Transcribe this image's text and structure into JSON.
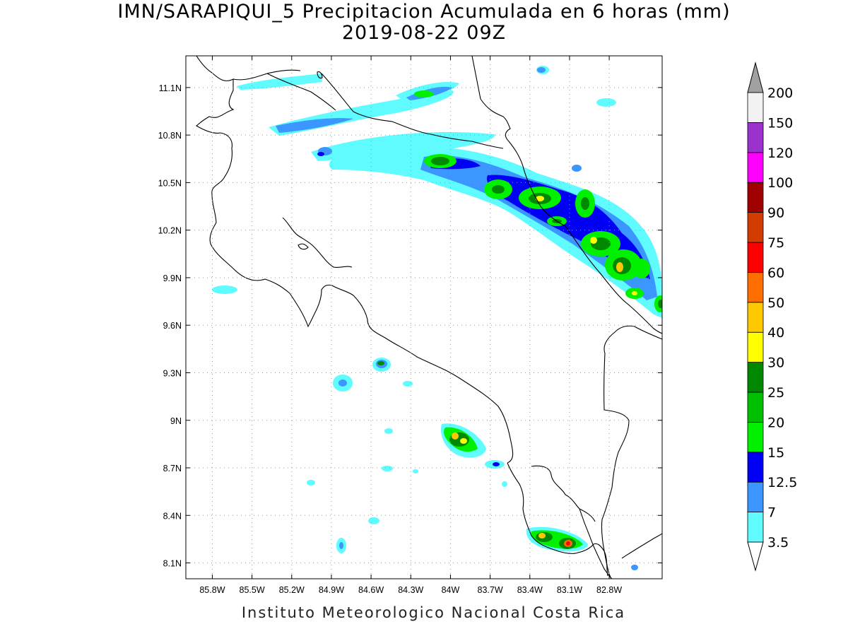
{
  "title": {
    "line1": "IMN/SARAPIQUI_5 Precipitacion Acumulada en 6 horas (mm)",
    "line2": "2019-08-22 09Z"
  },
  "footer": "Instituto Meteorologico Nacional Costa Rica",
  "map": {
    "lon_range": [
      -86.0,
      -82.4
    ],
    "lat_range": [
      8.0,
      11.3
    ],
    "lon_ticks": [
      {
        "value": -85.8,
        "label": "85.8W"
      },
      {
        "value": -85.5,
        "label": "85.5W"
      },
      {
        "value": -85.2,
        "label": "85.2W"
      },
      {
        "value": -84.9,
        "label": "84.9W"
      },
      {
        "value": -84.6,
        "label": "84.6W"
      },
      {
        "value": -84.3,
        "label": "84.3W"
      },
      {
        "value": -84.0,
        "label": "84W"
      },
      {
        "value": -83.7,
        "label": "83.7W"
      },
      {
        "value": -83.4,
        "label": "83.4W"
      },
      {
        "value": -83.1,
        "label": "83.1W"
      },
      {
        "value": -82.8,
        "label": "82.8W"
      }
    ],
    "lat_ticks": [
      {
        "value": 8.1,
        "label": "8.1N"
      },
      {
        "value": 8.4,
        "label": "8.4N"
      },
      {
        "value": 8.7,
        "label": "8.7N"
      },
      {
        "value": 9.0,
        "label": "9N"
      },
      {
        "value": 9.3,
        "label": "9.3N"
      },
      {
        "value": 9.6,
        "label": "9.6N"
      },
      {
        "value": 9.9,
        "label": "9.9N"
      },
      {
        "value": 10.2,
        "label": "10.2N"
      },
      {
        "value": 10.5,
        "label": "10.5N"
      },
      {
        "value": 10.8,
        "label": "10.8N"
      },
      {
        "value": 11.1,
        "label": "11.1N"
      }
    ],
    "grid": "dotted"
  },
  "colorbar": {
    "levels": [
      {
        "label": "3.5",
        "color": "#5ffbff"
      },
      {
        "label": "7",
        "color": "#3c96ff"
      },
      {
        "label": "12.5",
        "color": "#0000f5"
      },
      {
        "label": "15",
        "color": "#00f000"
      },
      {
        "label": "20",
        "color": "#00c000"
      },
      {
        "label": "25",
        "color": "#008800"
      },
      {
        "label": "30",
        "color": "#ffff00"
      },
      {
        "label": "40",
        "color": "#ffc800"
      },
      {
        "label": "50",
        "color": "#ff6e00"
      },
      {
        "label": "60",
        "color": "#ff0000"
      },
      {
        "label": "75",
        "color": "#d23c00"
      },
      {
        "label": "90",
        "color": "#a00000"
      },
      {
        "label": "100",
        "color": "#ff00ff"
      },
      {
        "label": "120",
        "color": "#9b32cd"
      },
      {
        "label": "150",
        "color": "#f2f2f2"
      },
      {
        "label": "200",
        "color": "#a0a0a0"
      }
    ]
  },
  "precip_cells": [
    {
      "lon": -84.05,
      "lat": 10.64,
      "peak_mm": 25
    },
    {
      "lon": -83.6,
      "lat": 10.55,
      "peak_mm": 25
    },
    {
      "lon": -83.35,
      "lat": 10.42,
      "peak_mm": 40
    },
    {
      "lon": -83.05,
      "lat": 10.15,
      "peak_mm": 30
    },
    {
      "lon": -82.85,
      "lat": 9.96,
      "peak_mm": 40
    },
    {
      "lon": -82.8,
      "lat": 9.8,
      "peak_mm": 30
    },
    {
      "lon": -82.45,
      "lat": 9.75,
      "peak_mm": 25
    },
    {
      "lon": -84.0,
      "lat": 8.87,
      "peak_mm": 40
    },
    {
      "lon": -83.4,
      "lat": 8.28,
      "peak_mm": 30
    },
    {
      "lon": -83.18,
      "lat": 8.24,
      "peak_mm": 60
    },
    {
      "lon": -84.6,
      "lat": 9.37,
      "peak_mm": 15
    },
    {
      "lon": -84.18,
      "lat": 11.07,
      "peak_mm": 20
    }
  ]
}
